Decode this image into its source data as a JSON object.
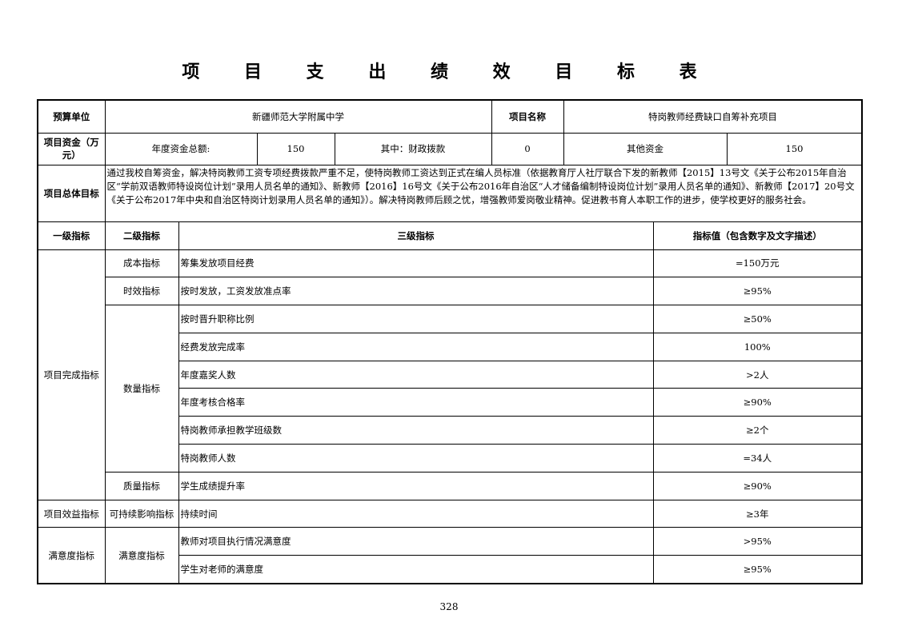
{
  "title": "项 目 支 出 绩 效 目 标 表",
  "header": {
    "budget_unit_label": "预算单位",
    "budget_unit": "新疆师范大学附属中学",
    "project_name_label": "项目名称",
    "project_name": "特岗教师经费缺口自筹补充项目",
    "funds_label": "项目资金（万元）",
    "annual_total_label": "年度资金总额:",
    "annual_total": "150",
    "fiscal_label": "其中：财政拨款",
    "fiscal": "0",
    "other_label": "其他资金",
    "other": "150",
    "goal_label": "项目总体目标",
    "goal": "通过我校自筹资金，解决特岗教师工资专项经费拨款严重不足，使特岗教师工资达到正式在编人员标准（依据教育厅人社厅联合下发的新教师【2015】13号文《关于公布2015年自治区“学前双语教师特设岗位计划”录用人员名单的通知》、新教师【2016】16号文《关于公布2016年自治区“人才储备编制特设岗位计划”录用人员名单的通知》、新教师【2017】20号文《关于公布2017年中央和自治区特岗计划录用人员名单的通知》）。解决特岗教师后顾之忧，增强教师爱岗敬业精神。促进教书育人本职工作的进步，使学校更好的服务社会。"
  },
  "columns": [
    "一级指标",
    "二级指标",
    "三级指标",
    "指标值（包含数字及文字描述）"
  ],
  "groups": {
    "l1_a": "项目完成指标",
    "l1_b": "项目效益指标",
    "l1_c": "满意度指标",
    "cost": "成本指标",
    "time": "时效指标",
    "qty": "数量指标",
    "quality": "质量指标",
    "sustain": "可持续影响指标",
    "satis": "满意度指标"
  },
  "rows": [
    {
      "name": "筹集发放项目经费",
      "value": "=150万元"
    },
    {
      "name": "按时发放，工资发放准点率",
      "value": "≥95%"
    },
    {
      "name": "按时晋升职称比例",
      "value": "≥50%"
    },
    {
      "name": "经费发放完成率",
      "value": "100%"
    },
    {
      "name": "年度嘉奖人数",
      "value": ">2人"
    },
    {
      "name": "年度考核合格率",
      "value": "≥90%"
    },
    {
      "name": "特岗教师承担教学班级数",
      "value": "≥2个"
    },
    {
      "name": "特岗教师人数",
      "value": "=34人"
    },
    {
      "name": "学生成绩提升率",
      "value": "≥90%"
    },
    {
      "name": "持续时间",
      "value": "≥3年"
    },
    {
      "name": "教师对项目执行情况满意度",
      "value": ">95%"
    },
    {
      "name": "学生对老师的满意度",
      "value": "≥95%"
    }
  ],
  "page_number": "328"
}
